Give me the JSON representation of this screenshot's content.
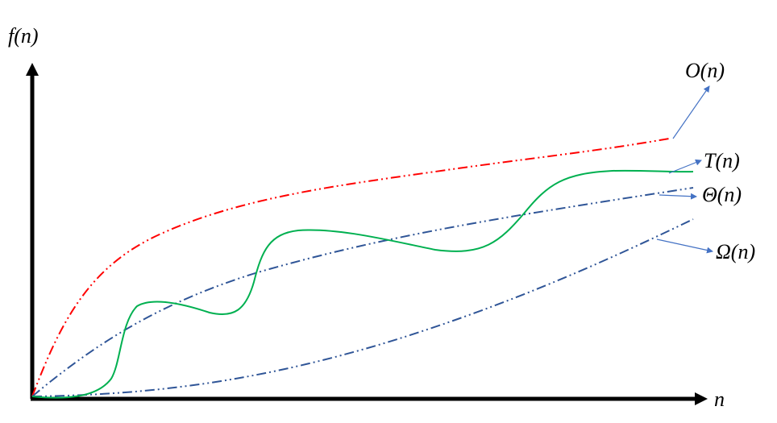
{
  "axes": {
    "y_label": "f(n)",
    "x_label": "n"
  },
  "curves": [
    {
      "label": "O(n)"
    },
    {
      "label": "T(n)"
    },
    {
      "label": "Θ(n)"
    },
    {
      "label": "Ω(n)"
    }
  ]
}
